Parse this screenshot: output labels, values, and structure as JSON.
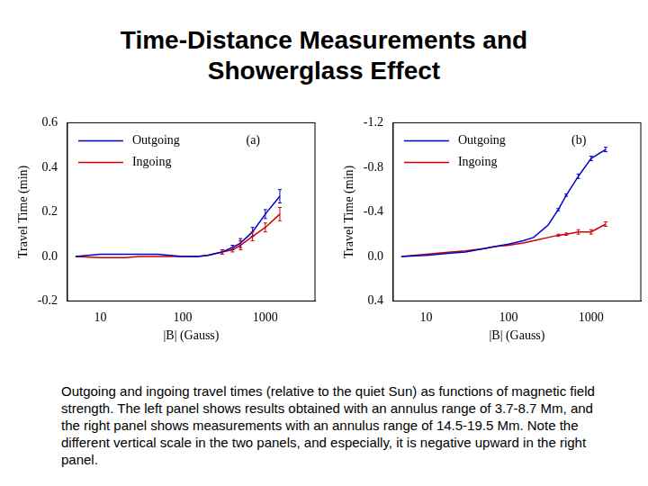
{
  "title": "Time-Distance Measurements and Showerglass Effect",
  "caption": "Outgoing and ingoing travel times (relative to the quiet Sun) as functions of magnetic field strength. The left panel shows results obtained with an annulus range of 3.7-8.7 Mm, and the right panel shows measurements with an annulus range of 14.5-19.5 Mm. Note the different vertical scale in the two panels, and especially, it is negative upward in the right panel.",
  "chart_data": [
    {
      "type": "line",
      "annotation": "(a)",
      "x_label": "|B| (Gauss)",
      "y_label": "Travel Time (min)",
      "log": "x",
      "grid": false,
      "legend": "upper left",
      "line_style": "solid",
      "xlim": [
        4,
        4000
      ],
      "xticks": [
        10,
        100,
        1000
      ],
      "ylim": [
        -0.2,
        0.6
      ],
      "yticks": [
        -0.2,
        {
          "value": 0,
          "label": "0.0"
        },
        0.2,
        0.4,
        0.6
      ],
      "x": [
        5,
        10,
        20,
        30,
        50,
        70,
        100,
        150,
        200,
        300,
        400,
        500,
        700,
        1000,
        1500
      ],
      "series": [
        {
          "name": "Outgoing",
          "color": "#0000cc",
          "values": [
            0,
            0.01,
            0.01,
            0.01,
            0.01,
            0.005,
            0,
            0,
            0.005,
            0.02,
            0.04,
            0.06,
            0.11,
            0.19,
            0.27
          ],
          "errors": [
            0,
            0,
            0,
            0,
            0,
            0,
            0,
            0,
            0,
            0.01,
            0.01,
            0.02,
            0.02,
            0.02,
            0.03
          ]
        },
        {
          "name": "Ingoing",
          "color": "#cc0000",
          "values": [
            0,
            -0.005,
            -0.005,
            0,
            0,
            0,
            0,
            0,
            0.005,
            0.02,
            0.03,
            0.05,
            0.09,
            0.13,
            0.19
          ],
          "errors": [
            0,
            0,
            0,
            0,
            0,
            0,
            0,
            0,
            0,
            0.01,
            0.01,
            0.02,
            0.02,
            0.02,
            0.03
          ]
        }
      ]
    },
    {
      "type": "line",
      "annotation": "(b)",
      "x_label": "|B| (Gauss)",
      "y_label": "Travel Time (min)",
      "log": "x",
      "grid": false,
      "legend": "upper left",
      "line_style": "solid",
      "xlim": [
        4,
        4000
      ],
      "xticks": [
        10,
        100,
        1000
      ],
      "ylim": [
        0.4,
        -1.2
      ],
      "yticks": [
        -1.2,
        -0.8,
        -0.4,
        {
          "value": 0,
          "label": "0.0"
        },
        0.4
      ],
      "x": [
        5,
        10,
        20,
        30,
        50,
        70,
        100,
        150,
        200,
        300,
        400,
        500,
        700,
        1000,
        1500
      ],
      "series": [
        {
          "name": "Outgoing",
          "color": "#0000cc",
          "values": [
            0,
            -0.01,
            -0.03,
            -0.04,
            -0.07,
            -0.09,
            -0.11,
            -0.14,
            -0.17,
            -0.28,
            -0.42,
            -0.55,
            -0.72,
            -0.88,
            -0.96
          ],
          "errors": [
            0,
            0,
            0,
            0,
            0,
            0,
            0,
            0,
            0,
            0,
            0.01,
            0.01,
            0.02,
            0.02,
            0.02
          ]
        },
        {
          "name": "Ingoing",
          "color": "#cc0000",
          "values": [
            0,
            -0.02,
            -0.04,
            -0.05,
            -0.07,
            -0.09,
            -0.1,
            -0.12,
            -0.14,
            -0.17,
            -0.19,
            -0.2,
            -0.22,
            -0.22,
            -0.29
          ],
          "errors": [
            0,
            0,
            0,
            0,
            0,
            0,
            0,
            0,
            0,
            0,
            0.01,
            0.01,
            0.02,
            0.02,
            0.02
          ]
        }
      ]
    }
  ]
}
